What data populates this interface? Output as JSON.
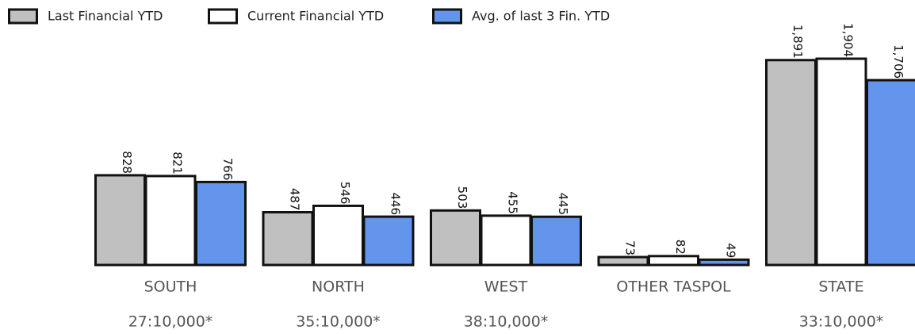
{
  "chart_data": {
    "type": "bar",
    "categories": [
      "SOUTH",
      "NORTH",
      "WEST",
      "OTHER TASPOL",
      "STATE"
    ],
    "sublabels": [
      "27:10,000*",
      "35:10,000*",
      "38:10,000*",
      null,
      "33:10,000*"
    ],
    "series": [
      {
        "name": "Last Financial YTD",
        "color": "#c0c0c0",
        "values": [
          828,
          487,
          503,
          73,
          1891
        ],
        "value_labels": [
          "828",
          "487",
          "503",
          "73",
          "1,891"
        ]
      },
      {
        "name": "Current Financial YTD",
        "color": "#ffffff",
        "values": [
          821,
          546,
          455,
          82,
          1904
        ],
        "value_labels": [
          "821",
          "546",
          "455",
          "82",
          "1,904"
        ]
      },
      {
        "name": "Avg. of last 3 Fin. YTD",
        "color": "#6495ed",
        "values": [
          766,
          446,
          445,
          49,
          1706
        ],
        "value_labels": [
          "766",
          "446",
          "445",
          "49",
          "1,706"
        ]
      }
    ]
  }
}
